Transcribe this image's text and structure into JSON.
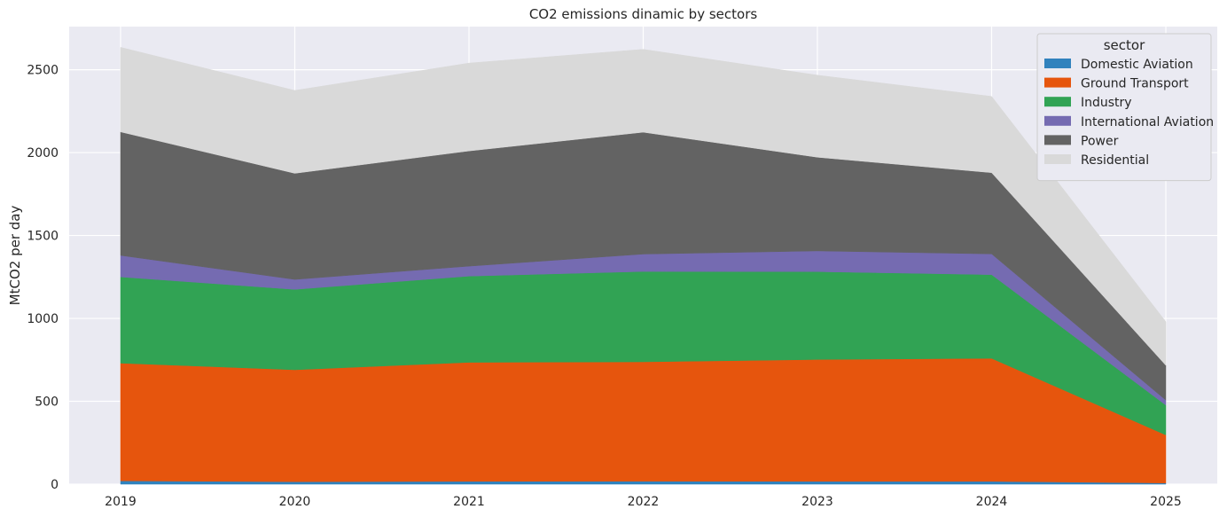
{
  "chart_data": {
    "type": "area",
    "stacked": true,
    "title": "CO2 emissions dinamic by sectors",
    "xlabel": "",
    "ylabel": "MtCO2 per day",
    "x": [
      "2019",
      "2020",
      "2021",
      "2022",
      "2023",
      "2024",
      "2025"
    ],
    "ylim": [
      0,
      2760
    ],
    "yticks": [
      0,
      500,
      1000,
      1500,
      2000,
      2500
    ],
    "grid": true,
    "legend": {
      "title": "sector",
      "placement": "top-right"
    },
    "series": [
      {
        "name": "Domestic Aviation",
        "color": "#3182bd",
        "values": [
          20,
          15,
          17,
          18,
          17,
          17,
          7
        ]
      },
      {
        "name": "Ground Transport",
        "color": "#e6550d",
        "values": [
          710,
          675,
          718,
          720,
          735,
          742,
          290
        ]
      },
      {
        "name": "Industry",
        "color": "#31a354",
        "values": [
          520,
          485,
          520,
          545,
          530,
          505,
          180
        ]
      },
      {
        "name": "International Aviation",
        "color": "#756bb1",
        "values": [
          130,
          60,
          60,
          105,
          125,
          125,
          30
        ]
      },
      {
        "name": "Power",
        "color": "#636363",
        "values": [
          745,
          640,
          695,
          735,
          565,
          490,
          210
        ]
      },
      {
        "name": "Residential",
        "color": "#d9d9d9",
        "values": [
          510,
          500,
          530,
          500,
          495,
          460,
          263
        ]
      }
    ]
  }
}
